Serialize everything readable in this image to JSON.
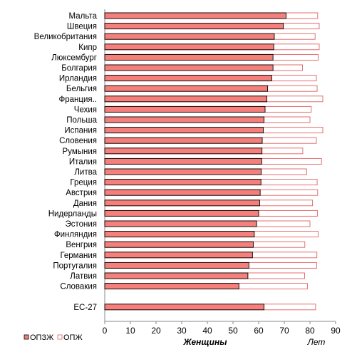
{
  "chart_data": {
    "type": "bar",
    "orientation": "horizontal",
    "title": "",
    "xlabel": "Женщины",
    "xunit": "Лет",
    "xlim": [
      0,
      90
    ],
    "xticks": [
      0,
      10,
      20,
      30,
      40,
      50,
      60,
      70,
      80,
      90
    ],
    "grid": false,
    "legend_position": "bottom-left",
    "categories": [
      "Мальта",
      "Швеция",
      "Великобритания",
      "Кипр",
      "Люксембург",
      "Болгария",
      "Ирландия",
      "Бельгия",
      "Франция..",
      "Чехия",
      "Польша",
      "Испания",
      "Словения",
      "Румыния",
      "Италия",
      "Литва",
      "Греция",
      "Австрия",
      "Дания",
      "Нидерланды",
      "Эстония",
      "Финляндия",
      "Венгрия",
      "Германия",
      "Португалия",
      "Латвия",
      "Словакия",
      "",
      "ЕС-27"
    ],
    "series": [
      {
        "name": "ОПЗЖ",
        "color": "#f47f7b",
        "edge": "#000000",
        "values": [
          70.7,
          69.6,
          66.1,
          65.9,
          65.6,
          65.6,
          65.1,
          63.5,
          63.2,
          62.5,
          62.1,
          61.8,
          61.4,
          61.3,
          61.2,
          61.0,
          60.9,
          60.6,
          60.4,
          60.0,
          59.2,
          58.3,
          57.9,
          57.6,
          56.2,
          55.8,
          52.3,
          null,
          62.1
        ]
      },
      {
        "name": "ОПЖ",
        "color": "#ffffff",
        "edge": "#e06060",
        "values": [
          83.0,
          83.6,
          82.0,
          83.6,
          83.2,
          77.1,
          82.5,
          82.8,
          85.0,
          80.5,
          80.0,
          85.0,
          82.5,
          77.2,
          84.5,
          78.7,
          82.8,
          83.0,
          81.0,
          82.9,
          80.0,
          83.2,
          78.0,
          82.7,
          82.6,
          77.9,
          79.0,
          null,
          82.2
        ]
      }
    ]
  }
}
